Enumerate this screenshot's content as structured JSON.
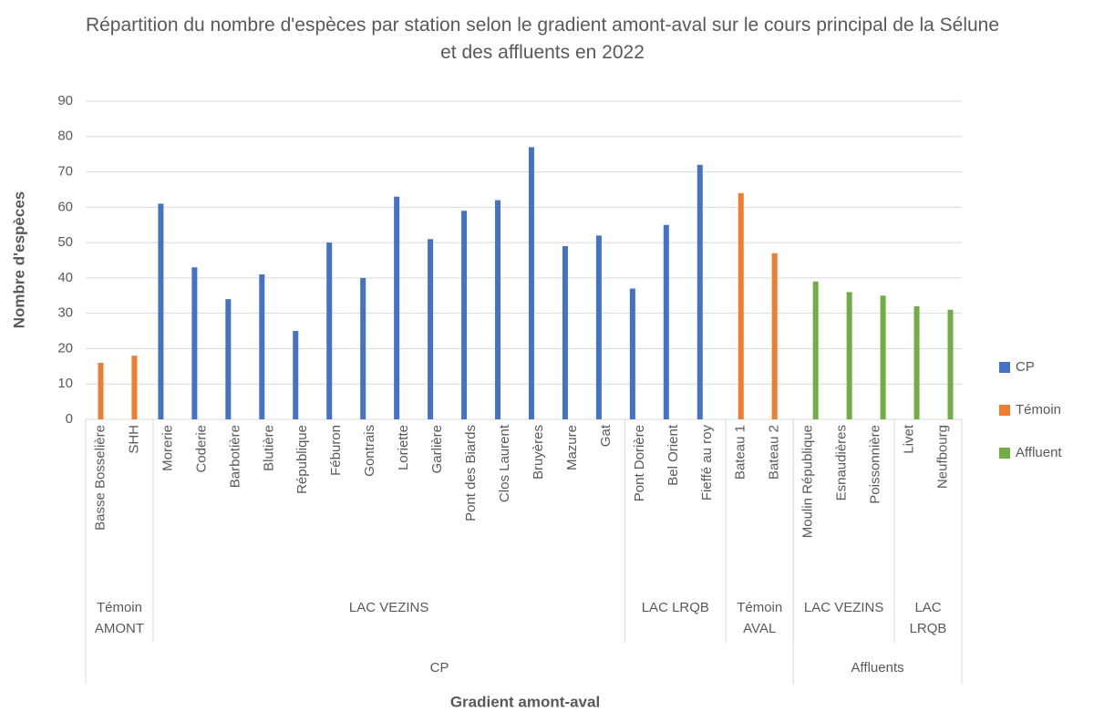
{
  "chart_data": {
    "type": "bar",
    "title": "Répartition du nombre d'espèces par station selon le gradient amont-aval sur le cours principal de la Sélune et des affluents en 2022",
    "x_label": "Gradient amont-aval",
    "y_label": "Nombre d'espèces",
    "categories": [
      "Basse Bosselière",
      "SHH",
      "Morerie",
      "Coderie",
      "Barbotière",
      "Blutière",
      "République",
      "Féburon",
      "Gontrais",
      "Loriette",
      "Garlière",
      "Pont des Biards",
      "Clos Laurent",
      "Bruyères",
      "Mazure",
      "Gat",
      "Pont Dorière",
      "Bel Orient",
      "Fieffé au roy",
      "Bateau 1",
      "Bateau 2",
      "Moulin République",
      "Esnaudières",
      "Poissonnière",
      "Livet",
      "Neufbourg"
    ],
    "category_groups": [
      [
        {
          "label": "Témoin AMONT",
          "span": 2
        },
        {
          "label": "LAC VEZINS",
          "span": 14
        },
        {
          "label": "LAC LRQB",
          "span": 3
        },
        {
          "label": "Témoin AVAL",
          "span": 2
        },
        {
          "label": "LAC VEZINS",
          "span": 3
        },
        {
          "label": "LAC LRQB",
          "span": 2
        }
      ],
      [
        {
          "label": "CP",
          "span": 21
        },
        {
          "label": "Affluents",
          "span": 5
        }
      ]
    ],
    "series": [
      {
        "name": "CP",
        "color": "#4472c4",
        "values": [
          null,
          null,
          61,
          43,
          34,
          41,
          25,
          50,
          40,
          63,
          51,
          59,
          62,
          77,
          49,
          52,
          37,
          55,
          72,
          null,
          null,
          null,
          null,
          null,
          null,
          null
        ]
      },
      {
        "name": "Témoin",
        "color": "#ed7d31",
        "values": [
          16,
          18,
          null,
          null,
          null,
          null,
          null,
          null,
          null,
          null,
          null,
          null,
          null,
          null,
          null,
          null,
          null,
          null,
          null,
          64,
          47,
          null,
          null,
          null,
          null,
          null
        ]
      },
      {
        "name": "Affluent",
        "color": "#70ad47",
        "values": [
          null,
          null,
          null,
          null,
          null,
          null,
          null,
          null,
          null,
          null,
          null,
          null,
          null,
          null,
          null,
          null,
          null,
          null,
          null,
          null,
          null,
          39,
          36,
          35,
          32,
          31
        ]
      }
    ],
    "ylim": [
      0,
      90
    ],
    "yticks": [
      0,
      10,
      20,
      30,
      40,
      50,
      60,
      70,
      80,
      90
    ],
    "grid": true,
    "legend": "right"
  }
}
